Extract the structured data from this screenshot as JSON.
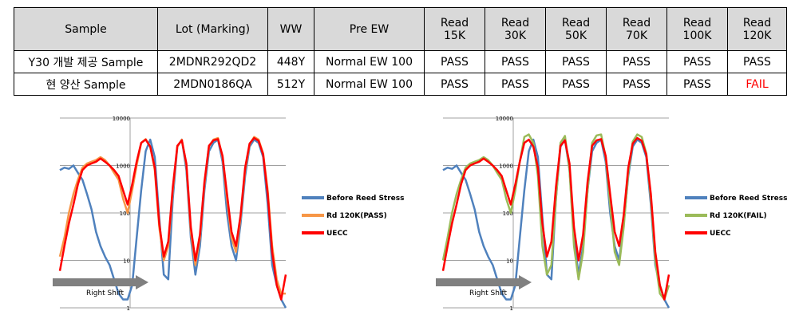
{
  "table": {
    "headers": [
      "Sample",
      "Lot (Marking)",
      "WW",
      "Pre EW",
      "Read\n15K",
      "Read\n30K",
      "Read\n50K",
      "Read\n70K",
      "Read\n100K",
      "Read\n120K"
    ],
    "rows": [
      [
        "Y30 개발 제공 Sample",
        "2MDNR292QD2",
        "448Y",
        "Normal EW 100",
        "PASS",
        "PASS",
        "PASS",
        "PASS",
        "PASS",
        "PASS"
      ],
      [
        "현 양산 Sample",
        "2MDN0186QA",
        "512Y",
        "Normal EW 100",
        "PASS",
        "PASS",
        "PASS",
        "PASS",
        "PASS",
        "FAIL"
      ]
    ]
  },
  "colors": {
    "blue": "#4f81bd",
    "orange": "#f79646",
    "green": "#9bbb59",
    "red": "#ff0000",
    "arrow": "#808080",
    "fail": "#ff0000"
  },
  "chart_data": [
    {
      "type": "line",
      "y_scale": "log",
      "ylim": [
        1,
        10000
      ],
      "y_ticks": [
        "10000",
        "1000",
        "100",
        "10",
        "1"
      ],
      "xlim": [
        0,
        100
      ],
      "grid": true,
      "legend_position": "right",
      "annotation": "Right Shift",
      "series": [
        {
          "name": "Before Reed Stress",
          "color": "#4f81bd",
          "x": [
            0,
            2,
            4,
            6,
            8,
            10,
            12,
            14,
            16,
            18,
            20,
            22,
            24,
            26,
            28,
            30,
            32,
            34,
            36,
            38,
            40,
            42,
            44,
            46,
            48,
            50,
            52,
            54,
            56,
            58,
            60,
            62,
            64,
            66,
            68,
            70,
            72,
            74,
            76,
            78,
            80,
            82,
            84,
            86,
            88,
            90,
            92,
            94,
            96,
            98,
            100
          ],
          "y": [
            800,
            900,
            850,
            1000,
            700,
            500,
            250,
            120,
            40,
            20,
            12,
            8,
            4,
            2,
            1.5,
            1.5,
            3,
            30,
            300,
            2000,
            3500,
            1500,
            80,
            5,
            4,
            200,
            2500,
            3500,
            800,
            30,
            5,
            20,
            300,
            2000,
            3000,
            3500,
            1200,
            100,
            20,
            10,
            60,
            600,
            2500,
            3500,
            3000,
            1500,
            150,
            8,
            3,
            1.5,
            1
          ]
        },
        {
          "name": "Rd 120K(PASS)",
          "color": "#f79646",
          "x": [
            0,
            2,
            4,
            6,
            8,
            10,
            12,
            14,
            16,
            18,
            20,
            22,
            24,
            26,
            28,
            30,
            32,
            34,
            36,
            38,
            40,
            42,
            44,
            46,
            48,
            50,
            52,
            54,
            56,
            58,
            60,
            62,
            64,
            66,
            68,
            70,
            72,
            74,
            76,
            78,
            80,
            82,
            84,
            86,
            88,
            90,
            92,
            94,
            96,
            98,
            100
          ],
          "y": [
            12,
            30,
            100,
            250,
            500,
            900,
            1100,
            1200,
            1300,
            1500,
            1300,
            1000,
            700,
            500,
            200,
            100,
            300,
            1000,
            3000,
            3600,
            2500,
            800,
            50,
            10,
            20,
            300,
            2500,
            3500,
            1000,
            40,
            8,
            30,
            400,
            2500,
            3500,
            3800,
            1500,
            200,
            30,
            15,
            80,
            800,
            2800,
            4000,
            3500,
            1800,
            300,
            20,
            4,
            2,
            2
          ]
        },
        {
          "name": "UECC",
          "color": "#ff0000",
          "x": [
            0,
            2,
            4,
            6,
            8,
            10,
            12,
            14,
            16,
            18,
            20,
            22,
            24,
            26,
            28,
            30,
            32,
            34,
            36,
            38,
            40,
            42,
            44,
            46,
            48,
            50,
            52,
            54,
            56,
            58,
            60,
            62,
            64,
            66,
            68,
            70,
            72,
            74,
            76,
            78,
            80,
            82,
            84,
            86,
            88,
            90,
            92,
            94,
            96,
            98,
            100
          ],
          "y": [
            6,
            20,
            60,
            150,
            400,
            800,
            1000,
            1100,
            1200,
            1400,
            1200,
            1000,
            800,
            600,
            300,
            150,
            400,
            1200,
            3000,
            3500,
            2500,
            900,
            60,
            12,
            25,
            350,
            2600,
            3400,
            1100,
            50,
            10,
            35,
            450,
            2600,
            3400,
            3600,
            1600,
            250,
            40,
            20,
            90,
            900,
            2900,
            3800,
            3300,
            1700,
            250,
            15,
            3,
            1.5,
            5
          ]
        }
      ]
    },
    {
      "type": "line",
      "y_scale": "log",
      "ylim": [
        1,
        10000
      ],
      "y_ticks": [
        "10000",
        "1000",
        "100",
        "10",
        "1"
      ],
      "xlim": [
        0,
        100
      ],
      "grid": true,
      "legend_position": "right",
      "annotation": "Right Shift",
      "series": [
        {
          "name": "Before Reed Stress",
          "color": "#4f81bd",
          "x": [
            0,
            2,
            4,
            6,
            8,
            10,
            12,
            14,
            16,
            18,
            20,
            22,
            24,
            26,
            28,
            30,
            32,
            34,
            36,
            38,
            40,
            42,
            44,
            46,
            48,
            50,
            52,
            54,
            56,
            58,
            60,
            62,
            64,
            66,
            68,
            70,
            72,
            74,
            76,
            78,
            80,
            82,
            84,
            86,
            88,
            90,
            92,
            94,
            96,
            98,
            100
          ],
          "y": [
            800,
            900,
            850,
            1000,
            700,
            500,
            250,
            120,
            40,
            20,
            12,
            8,
            4,
            2,
            1.5,
            1.5,
            3,
            30,
            300,
            2000,
            3500,
            1500,
            80,
            5,
            4,
            200,
            2500,
            3500,
            800,
            30,
            5,
            20,
            300,
            2000,
            3000,
            3500,
            1200,
            100,
            20,
            10,
            60,
            600,
            2500,
            3500,
            3000,
            1500,
            150,
            8,
            3,
            1.5,
            1
          ]
        },
        {
          "name": "Rd 120K(FAIL)",
          "color": "#9bbb59",
          "x": [
            0,
            2,
            4,
            6,
            8,
            10,
            12,
            14,
            16,
            18,
            20,
            22,
            24,
            26,
            28,
            30,
            32,
            34,
            36,
            38,
            40,
            42,
            44,
            46,
            48,
            50,
            52,
            54,
            56,
            58,
            60,
            62,
            64,
            66,
            68,
            70,
            72,
            74,
            76,
            78,
            80,
            82,
            84,
            86,
            88,
            90,
            92,
            94,
            96,
            98,
            100
          ],
          "y": [
            10,
            30,
            100,
            250,
            500,
            900,
            1100,
            1200,
            1300,
            1500,
            1300,
            1000,
            700,
            500,
            200,
            100,
            300,
            1200,
            4000,
            4500,
            3000,
            600,
            20,
            5,
            8,
            200,
            3000,
            4200,
            800,
            20,
            4,
            15,
            300,
            3000,
            4300,
            4500,
            1500,
            150,
            15,
            8,
            50,
            700,
            3200,
            4500,
            4000,
            1800,
            200,
            10,
            2,
            1.5,
            3
          ]
        },
        {
          "name": "UECC",
          "color": "#ff0000",
          "x": [
            0,
            2,
            4,
            6,
            8,
            10,
            12,
            14,
            16,
            18,
            20,
            22,
            24,
            26,
            28,
            30,
            32,
            34,
            36,
            38,
            40,
            42,
            44,
            46,
            48,
            50,
            52,
            54,
            56,
            58,
            60,
            62,
            64,
            66,
            68,
            70,
            72,
            74,
            76,
            78,
            80,
            82,
            84,
            86,
            88,
            90,
            92,
            94,
            96,
            98,
            100
          ],
          "y": [
            6,
            20,
            60,
            150,
            400,
            800,
            1000,
            1100,
            1200,
            1400,
            1200,
            1000,
            800,
            600,
            300,
            150,
            400,
            1200,
            3000,
            3500,
            2500,
            900,
            60,
            12,
            25,
            350,
            2600,
            3400,
            1100,
            50,
            10,
            35,
            450,
            2600,
            3400,
            3600,
            1600,
            250,
            40,
            20,
            90,
            900,
            2900,
            3800,
            3300,
            1700,
            250,
            15,
            3,
            1.5,
            5
          ]
        }
      ]
    }
  ]
}
